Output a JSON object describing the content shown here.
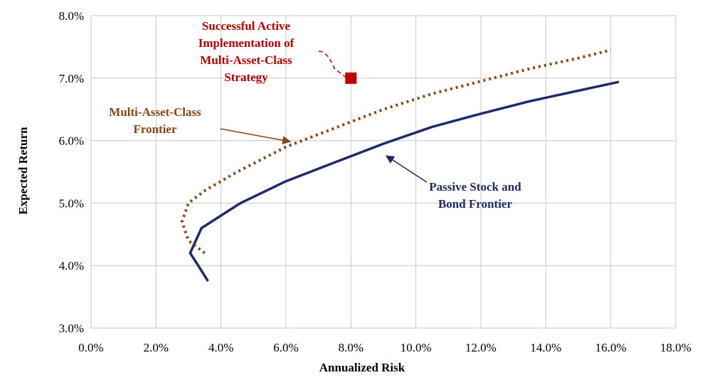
{
  "chart_data": {
    "type": "line",
    "xlabel": "Annualized Risk",
    "ylabel": "Expected Return",
    "xlim": [
      0,
      18
    ],
    "ylim": [
      3,
      8
    ],
    "x_ticks": [
      "0.0%",
      "2.0%",
      "4.0%",
      "6.0%",
      "8.0%",
      "10.0%",
      "12.0%",
      "14.0%",
      "16.0%",
      "18.0%"
    ],
    "y_ticks": [
      "3.0%",
      "4.0%",
      "5.0%",
      "6.0%",
      "7.0%",
      "8.0%"
    ],
    "grid": true,
    "legend": "none",
    "series": [
      {
        "name": "Passive Stock and Bond Frontier",
        "style": "solid",
        "color": "#1f2a6b",
        "points": [
          [
            3.6,
            3.75
          ],
          [
            3.3,
            4.0
          ],
          [
            3.05,
            4.2
          ],
          [
            3.4,
            4.6
          ],
          [
            4.6,
            5.0
          ],
          [
            6.0,
            5.35
          ],
          [
            7.5,
            5.65
          ],
          [
            9.0,
            5.95
          ],
          [
            10.5,
            6.22
          ],
          [
            12.0,
            6.43
          ],
          [
            13.5,
            6.63
          ],
          [
            15.0,
            6.8
          ],
          [
            16.25,
            6.94
          ]
        ]
      },
      {
        "name": "Multi-Asset-Class Frontier",
        "style": "dotted",
        "color": "#8b4513",
        "points": [
          [
            3.5,
            4.2
          ],
          [
            3.0,
            4.4
          ],
          [
            2.8,
            4.7
          ],
          [
            3.0,
            5.0
          ],
          [
            3.5,
            5.2
          ],
          [
            4.5,
            5.5
          ],
          [
            6.0,
            5.9
          ],
          [
            7.5,
            6.2
          ],
          [
            9.0,
            6.5
          ],
          [
            10.5,
            6.75
          ],
          [
            12.0,
            6.95
          ],
          [
            13.5,
            7.15
          ],
          [
            15.0,
            7.32
          ],
          [
            16.0,
            7.45
          ]
        ]
      },
      {
        "name": "Successful Active Implementation of Multi-Asset-Class Strategy",
        "style": "marker",
        "color": "#c00000",
        "points": [
          [
            8.0,
            7.0
          ]
        ]
      }
    ],
    "annotations": [
      {
        "id": "active",
        "lines": [
          "Successful Active",
          "Implementation  of",
          "Multi-Asset-Class",
          "Strategy"
        ],
        "color": "#c00000"
      },
      {
        "id": "mac",
        "lines": [
          "Multi-Asset-Class",
          "Frontier"
        ],
        "color": "#8b4513"
      },
      {
        "id": "passive",
        "lines": [
          "Passive Stock and",
          "Bond  Frontier"
        ],
        "color": "#1f2a6b"
      }
    ]
  }
}
